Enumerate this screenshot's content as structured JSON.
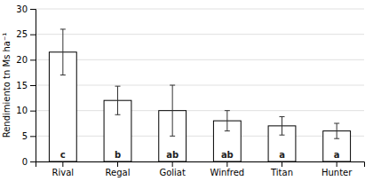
{
  "chart_data": {
    "type": "bar",
    "categories": [
      "Rival",
      "Regal",
      "Goliat",
      "Winfred",
      "Titan",
      "Hunter"
    ],
    "values": [
      21.5,
      12.0,
      10.0,
      8.0,
      7.0,
      6.0
    ],
    "errors": [
      4.5,
      2.8,
      5.0,
      2.0,
      1.8,
      1.5
    ],
    "annotations": [
      "c",
      "b",
      "ab",
      "ab",
      "a",
      "a"
    ],
    "color": "#ffffff",
    "ylabel": "Rendimiento tn Ms ha⁻¹",
    "ylim": [
      0,
      30
    ],
    "yticks": [
      0,
      5,
      10,
      15,
      20,
      25,
      30
    ],
    "grid": true
  }
}
